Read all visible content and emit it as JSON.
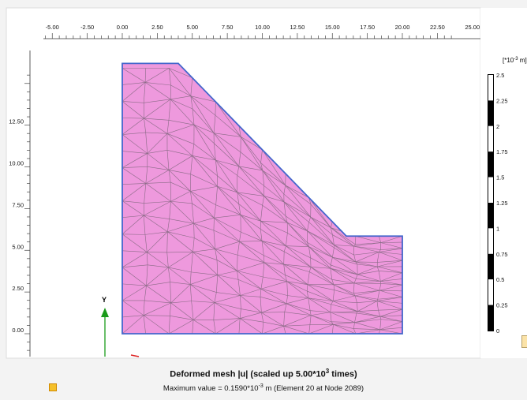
{
  "x_axis": {
    "ticks": [
      "-5.00",
      "-2.50",
      "0.00",
      "2.50",
      "5.00",
      "7.50",
      "10.00",
      "12.50",
      "15.00",
      "17.50",
      "20.00",
      "22.50",
      "25.00"
    ]
  },
  "y_axis": {
    "ticks": [
      "0.00",
      "2.50",
      "5.00",
      "7.50",
      "10.00",
      "12.50"
    ]
  },
  "axis_indicator": {
    "y_label": "Y"
  },
  "legend": {
    "unit_base": "[*10",
    "unit_exp": "-3",
    "unit_tail": " m]",
    "levels": [
      "2.5",
      "2.25",
      "2",
      "1.75",
      "1.5",
      "1.25",
      "1",
      "0.75",
      "0.5",
      "0.25",
      "0"
    ],
    "band_colors": [
      "#ffffff",
      "#000000",
      "#ffffff",
      "#000000",
      "#ffffff",
      "#000000",
      "#ffffff",
      "#000000",
      "#ffffff",
      "#000000"
    ]
  },
  "geometry_model": {
    "outline_vertices_m": [
      [
        0,
        0
      ],
      [
        20,
        0
      ],
      [
        20,
        5.85
      ],
      [
        16,
        5.85
      ],
      [
        4,
        16.2
      ],
      [
        0,
        16.2
      ]
    ],
    "mesh_fill_color": "#ee99dd",
    "outline_color": "#4466cc"
  },
  "caption": {
    "title_pre": "Deformed mesh |u| (scaled up 5.00*10",
    "title_exp": "3",
    "title_post": " times)",
    "sub_pre": "Maximum value = 0.1590*10",
    "sub_exp": "-3",
    "sub_post": " m (Element 20 at Node 2089)"
  }
}
